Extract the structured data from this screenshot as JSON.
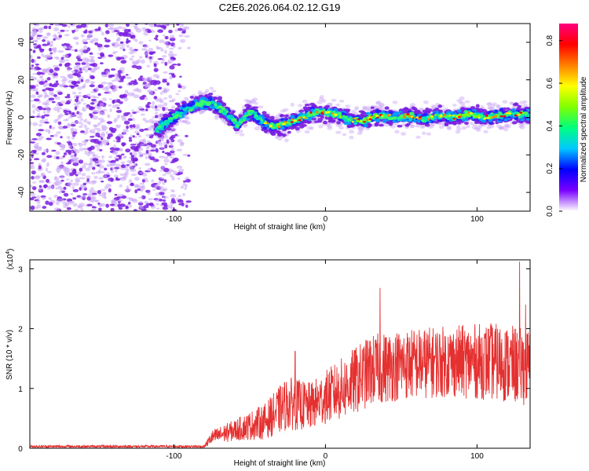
{
  "title": "C2E6.2026.064.02.12.G19",
  "colors": {
    "snr_line": "#e53030",
    "axis": "#000000",
    "background": "#ffffff",
    "noise_purple": "#7a1fe0",
    "noise_light": "#c9a6f5"
  },
  "chart_data": [
    {
      "type": "heatmap",
      "name": "spectrogram",
      "xlabel": "Height of straight line (km)",
      "ylabel": "Frequency (Hz)",
      "xlim": [
        -195,
        135
      ],
      "ylim": [
        -50,
        50
      ],
      "x_ticks": [
        -100,
        0,
        100
      ],
      "x_tick_labels": [
        "-100",
        "0",
        "100"
      ],
      "y_ticks": [
        -40,
        -20,
        0,
        20,
        40
      ],
      "y_tick_labels": [
        "-40",
        "-20",
        "0",
        "20",
        "40"
      ],
      "noise_region_x": [
        -195,
        -90
      ],
      "signal_start_x": -112,
      "ridge": [
        {
          "x": -112,
          "y": -7
        },
        {
          "x": -105,
          "y": -3
        },
        {
          "x": -95,
          "y": 3
        },
        {
          "x": -85,
          "y": 7
        },
        {
          "x": -75,
          "y": 8
        },
        {
          "x": -65,
          "y": 2
        },
        {
          "x": -58,
          "y": -4
        },
        {
          "x": -50,
          "y": 3
        },
        {
          "x": -42,
          "y": -2
        },
        {
          "x": -34,
          "y": -5
        },
        {
          "x": -25,
          "y": -3
        },
        {
          "x": -15,
          "y": 0
        },
        {
          "x": -5,
          "y": 3
        },
        {
          "x": 5,
          "y": 2
        },
        {
          "x": 15,
          "y": -1
        },
        {
          "x": 25,
          "y": -2
        },
        {
          "x": 35,
          "y": 1
        },
        {
          "x": 45,
          "y": 0
        },
        {
          "x": 55,
          "y": 1
        },
        {
          "x": 65,
          "y": -1
        },
        {
          "x": 75,
          "y": 1
        },
        {
          "x": 85,
          "y": 0
        },
        {
          "x": 95,
          "y": 2
        },
        {
          "x": 105,
          "y": 0
        },
        {
          "x": 115,
          "y": 1
        },
        {
          "x": 125,
          "y": 2
        },
        {
          "x": 135,
          "y": 1
        }
      ],
      "colorbar": {
        "label": "Normalized spectral amplitude",
        "range": [
          0,
          0.88
        ],
        "ticks": [
          0.0,
          0.2,
          0.4,
          0.6,
          0.8
        ],
        "tick_labels": [
          "0.0",
          "0.2",
          "0.4",
          "0.6",
          "0.8"
        ],
        "colormap": [
          "#ffffff",
          "#7a00ff",
          "#0000ff",
          "#00c8ff",
          "#00ff80",
          "#80ff00",
          "#ffff00",
          "#ff8000",
          "#ff0000",
          "#ff0080"
        ]
      }
    },
    {
      "type": "line",
      "name": "snr",
      "xlabel": "Height of straight line (km)",
      "ylabel": "SNR (10 * v/v)",
      "y_multiplier_label": "(x10",
      "y_multiplier_exp": "4",
      "y_multiplier_close": ")",
      "xlim": [
        -195,
        135
      ],
      "ylim": [
        0,
        3.15
      ],
      "x_ticks": [
        -100,
        0,
        100
      ],
      "x_tick_labels": [
        "-100",
        "0",
        "100"
      ],
      "y_ticks": [
        0,
        1,
        2,
        3
      ],
      "y_tick_labels": [
        "0",
        "1",
        "2",
        "3"
      ],
      "envelope": [
        {
          "x": -195,
          "mean": 0.03,
          "amp": 0.02
        },
        {
          "x": -80,
          "mean": 0.03,
          "amp": 0.02
        },
        {
          "x": -75,
          "mean": 0.18,
          "amp": 0.12
        },
        {
          "x": -60,
          "mean": 0.3,
          "amp": 0.18
        },
        {
          "x": -40,
          "mean": 0.45,
          "amp": 0.3
        },
        {
          "x": -25,
          "mean": 0.75,
          "amp": 0.45
        },
        {
          "x": -10,
          "mean": 0.7,
          "amp": 0.4
        },
        {
          "x": 0,
          "mean": 0.85,
          "amp": 0.45
        },
        {
          "x": 15,
          "mean": 1.05,
          "amp": 0.55
        },
        {
          "x": 30,
          "mean": 1.3,
          "amp": 0.6
        },
        {
          "x": 50,
          "mean": 1.4,
          "amp": 0.6
        },
        {
          "x": 80,
          "mean": 1.45,
          "amp": 0.6
        },
        {
          "x": 110,
          "mean": 1.45,
          "amp": 0.65
        },
        {
          "x": 135,
          "mean": 1.35,
          "amp": 0.65
        }
      ],
      "peaks": [
        {
          "x": -20,
          "y": 1.62
        },
        {
          "x": 36,
          "y": 2.68
        },
        {
          "x": 128,
          "y": 3.12
        },
        {
          "x": 132,
          "y": 2.4
        }
      ]
    }
  ]
}
